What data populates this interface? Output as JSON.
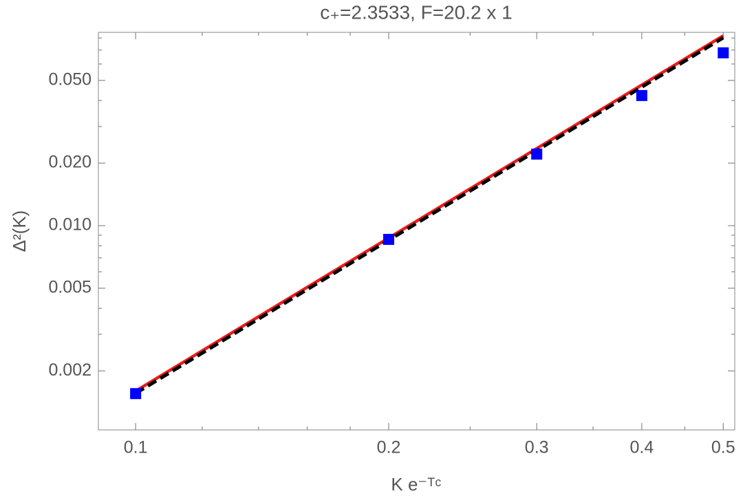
{
  "chart_data": {
    "type": "scatter",
    "title": "c₊=2.3533, F=20.2 x 1",
    "x_label": "K e⁻ᵀᶜ",
    "y_label": "Δ²(K)",
    "xscale": "log",
    "yscale": "log",
    "xlim": [
      0.0903,
      0.516
    ],
    "ylim": [
      0.00104,
      0.0852
    ],
    "xticks": [
      0.1,
      0.2,
      0.3,
      0.4,
      0.5
    ],
    "yticks": [
      0.002,
      0.005,
      {
        "value": 0.01,
        "label": "0.010"
      },
      {
        "value": 0.02,
        "label": "0.020"
      },
      {
        "value": 0.05,
        "label": "0.050"
      }
    ],
    "xminorticks": [
      0.12,
      0.14,
      0.16,
      0.18,
      0.25,
      0.35,
      0.45
    ],
    "yminorticks": [
      0.003,
      0.004,
      0.006,
      0.007,
      0.008,
      0.009,
      0.03,
      0.04,
      0.06,
      0.07,
      0.08
    ],
    "series": [
      {
        "style": "solid",
        "color": "#ee1c1c",
        "x": [
          0.1,
          0.5
        ],
        "values": [
          0.0016,
          0.0821
        ]
      },
      {
        "style": "dashed",
        "color": "#000000",
        "x": [
          0.1,
          0.5
        ],
        "values": [
          0.00156,
          0.0802
        ]
      },
      {
        "style": "markers",
        "color": "#0000ff",
        "x": [
          0.1,
          0.2,
          0.3,
          0.4,
          0.5
        ],
        "values": [
          0.001555,
          0.00859,
          0.0221,
          0.0423,
          0.0679
        ]
      }
    ]
  }
}
